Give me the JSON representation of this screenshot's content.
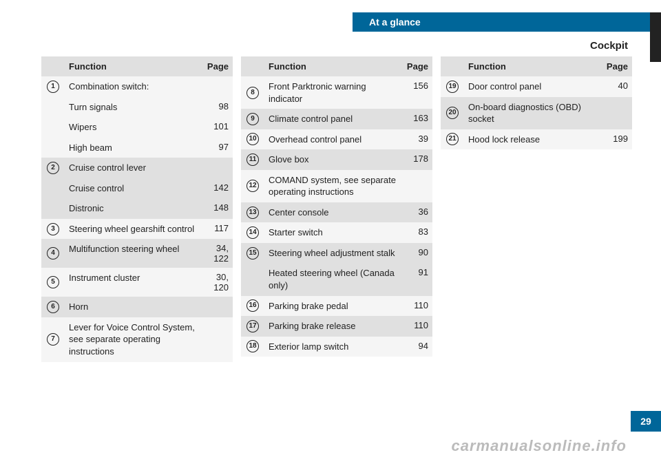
{
  "chapter": "At a glance",
  "section_title": "Cockpit",
  "page_number": "29",
  "watermark": "carmanualsonline.info",
  "col_headers": {
    "function": "Function",
    "page": "Page"
  },
  "columns": [
    {
      "rows": [
        {
          "type": "a",
          "n": "1",
          "text": "Combination switch:",
          "page": ""
        },
        {
          "type": "a",
          "n": "",
          "text": "Turn signals",
          "page": "98"
        },
        {
          "type": "a",
          "n": "",
          "text": "Wipers",
          "page": "101"
        },
        {
          "type": "a",
          "n": "",
          "text": "High beam",
          "page": "97"
        },
        {
          "type": "b",
          "n": "2",
          "text": "Cruise control lever",
          "page": ""
        },
        {
          "type": "b",
          "n": "",
          "text": "Cruise control",
          "page": "142"
        },
        {
          "type": "b",
          "n": "",
          "text": "Distronic",
          "page": "148"
        },
        {
          "type": "a",
          "n": "3",
          "text": "Steering wheel gearshift control",
          "page": "117"
        },
        {
          "type": "b",
          "n": "4",
          "text": "Multifunction steering wheel",
          "page": "34,\n122"
        },
        {
          "type": "a",
          "n": "5",
          "text": "Instrument cluster",
          "page": "30,\n120"
        },
        {
          "type": "b",
          "n": "6",
          "text": "Horn",
          "page": ""
        },
        {
          "type": "a",
          "n": "7",
          "text": "Lever for Voice Control System, see separate operating instructions",
          "page": ""
        }
      ]
    },
    {
      "rows": [
        {
          "type": "a",
          "n": "8",
          "text": "Front Parktronic warning indicator",
          "page": "156"
        },
        {
          "type": "b",
          "n": "9",
          "text": "Climate control panel",
          "page": "163"
        },
        {
          "type": "a",
          "n": "10",
          "text": "Overhead control panel",
          "page": "39"
        },
        {
          "type": "b",
          "n": "11",
          "text": "Glove box",
          "page": "178"
        },
        {
          "type": "a",
          "n": "12",
          "text": "COMAND system, see separate operating instructions",
          "page": ""
        },
        {
          "type": "b",
          "n": "13",
          "text": "Center console",
          "page": "36"
        },
        {
          "type": "a",
          "n": "14",
          "text": "Starter switch",
          "page": "83"
        },
        {
          "type": "b",
          "n": "15",
          "text": "Steering wheel adjustment stalk",
          "page": "90"
        },
        {
          "type": "b",
          "n": "",
          "text": "Heated steering wheel (Canada only)",
          "page": "91"
        },
        {
          "type": "a",
          "n": "16",
          "text": "Parking brake pedal",
          "page": "110"
        },
        {
          "type": "b",
          "n": "17",
          "text": "Parking brake release",
          "page": "110"
        },
        {
          "type": "a",
          "n": "18",
          "text": "Exterior lamp switch",
          "page": "94"
        }
      ]
    },
    {
      "rows": [
        {
          "type": "a",
          "n": "19",
          "text": "Door control panel",
          "page": "40"
        },
        {
          "type": "b",
          "n": "20",
          "text": "On-board diagnostics (OBD) socket",
          "page": ""
        },
        {
          "type": "a",
          "n": "21",
          "text": "Hood lock release",
          "page": "199"
        }
      ]
    }
  ]
}
